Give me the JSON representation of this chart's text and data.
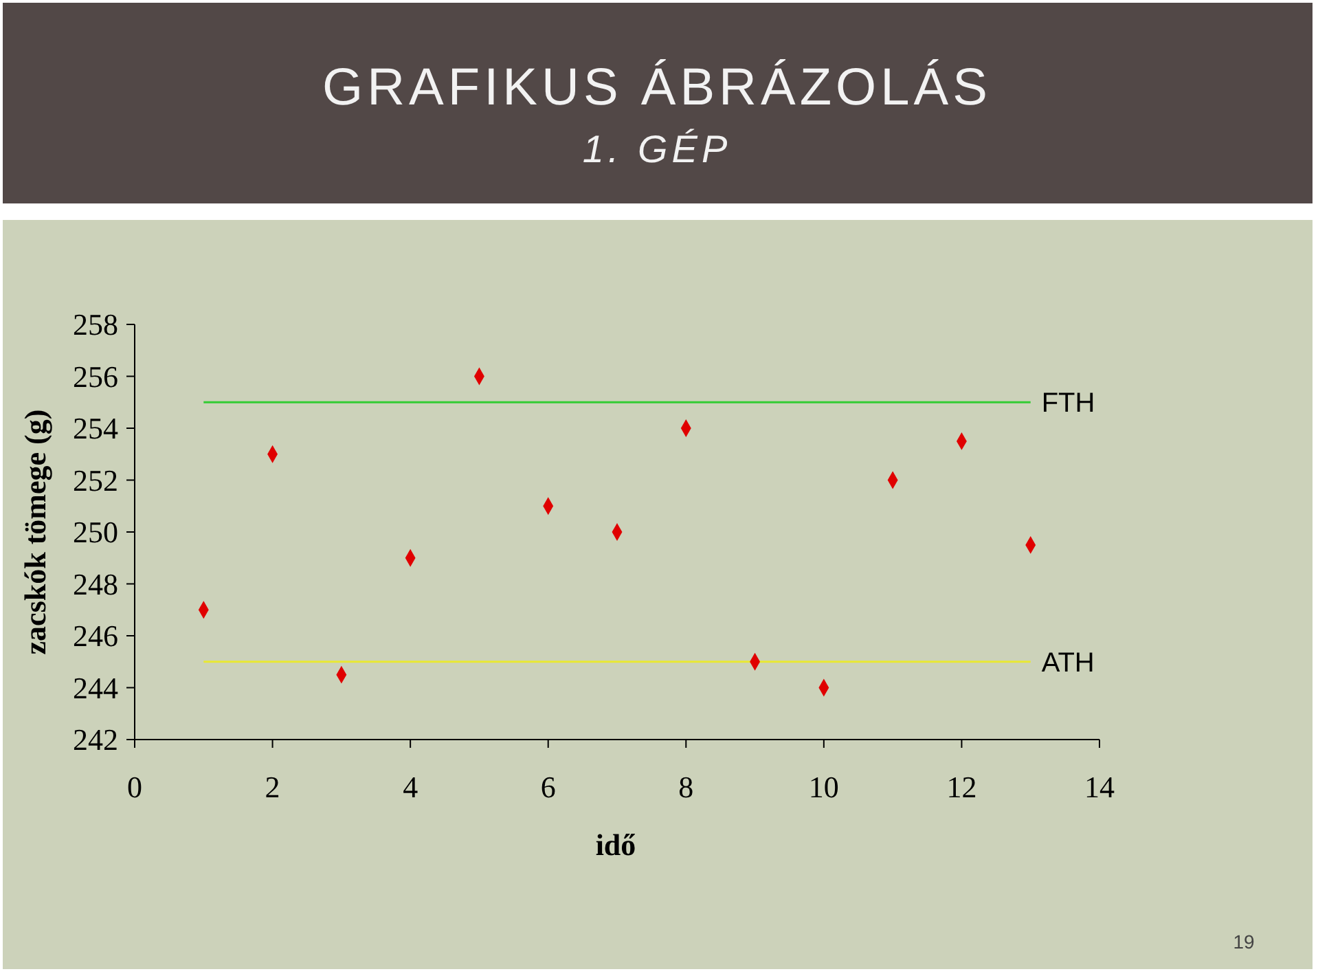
{
  "chart_data": {
    "type": "scatter",
    "title": "GRAFIKUS ÁBRÁZOLÁS",
    "subtitle": "1. GÉP",
    "xlabel": "idő",
    "ylabel": "zacskók tömege (g)",
    "x": [
      1,
      2,
      3,
      4,
      5,
      6,
      7,
      8,
      9,
      10,
      11,
      12,
      13
    ],
    "series": [
      {
        "color": "#e00000",
        "values": [
          247,
          253,
          244.5,
          249,
          256,
          251,
          250,
          254,
          245,
          244,
          252,
          253.5,
          249.5
        ]
      }
    ],
    "xlim": [
      0,
      14
    ],
    "xticks": [
      0,
      2,
      4,
      6,
      8,
      10,
      12,
      14
    ],
    "ylim": [
      242,
      258
    ],
    "yticks": [
      242,
      244,
      246,
      248,
      250,
      252,
      254,
      256,
      258
    ],
    "marker": "diamond",
    "grid": false,
    "ref_lines": [
      {
        "axis": "y",
        "value": 255,
        "label": "FTH",
        "color": "#33cc33"
      },
      {
        "axis": "y",
        "value": 245,
        "label": "ATH",
        "color": "#e8e833"
      }
    ],
    "annotations": [
      "19"
    ]
  }
}
